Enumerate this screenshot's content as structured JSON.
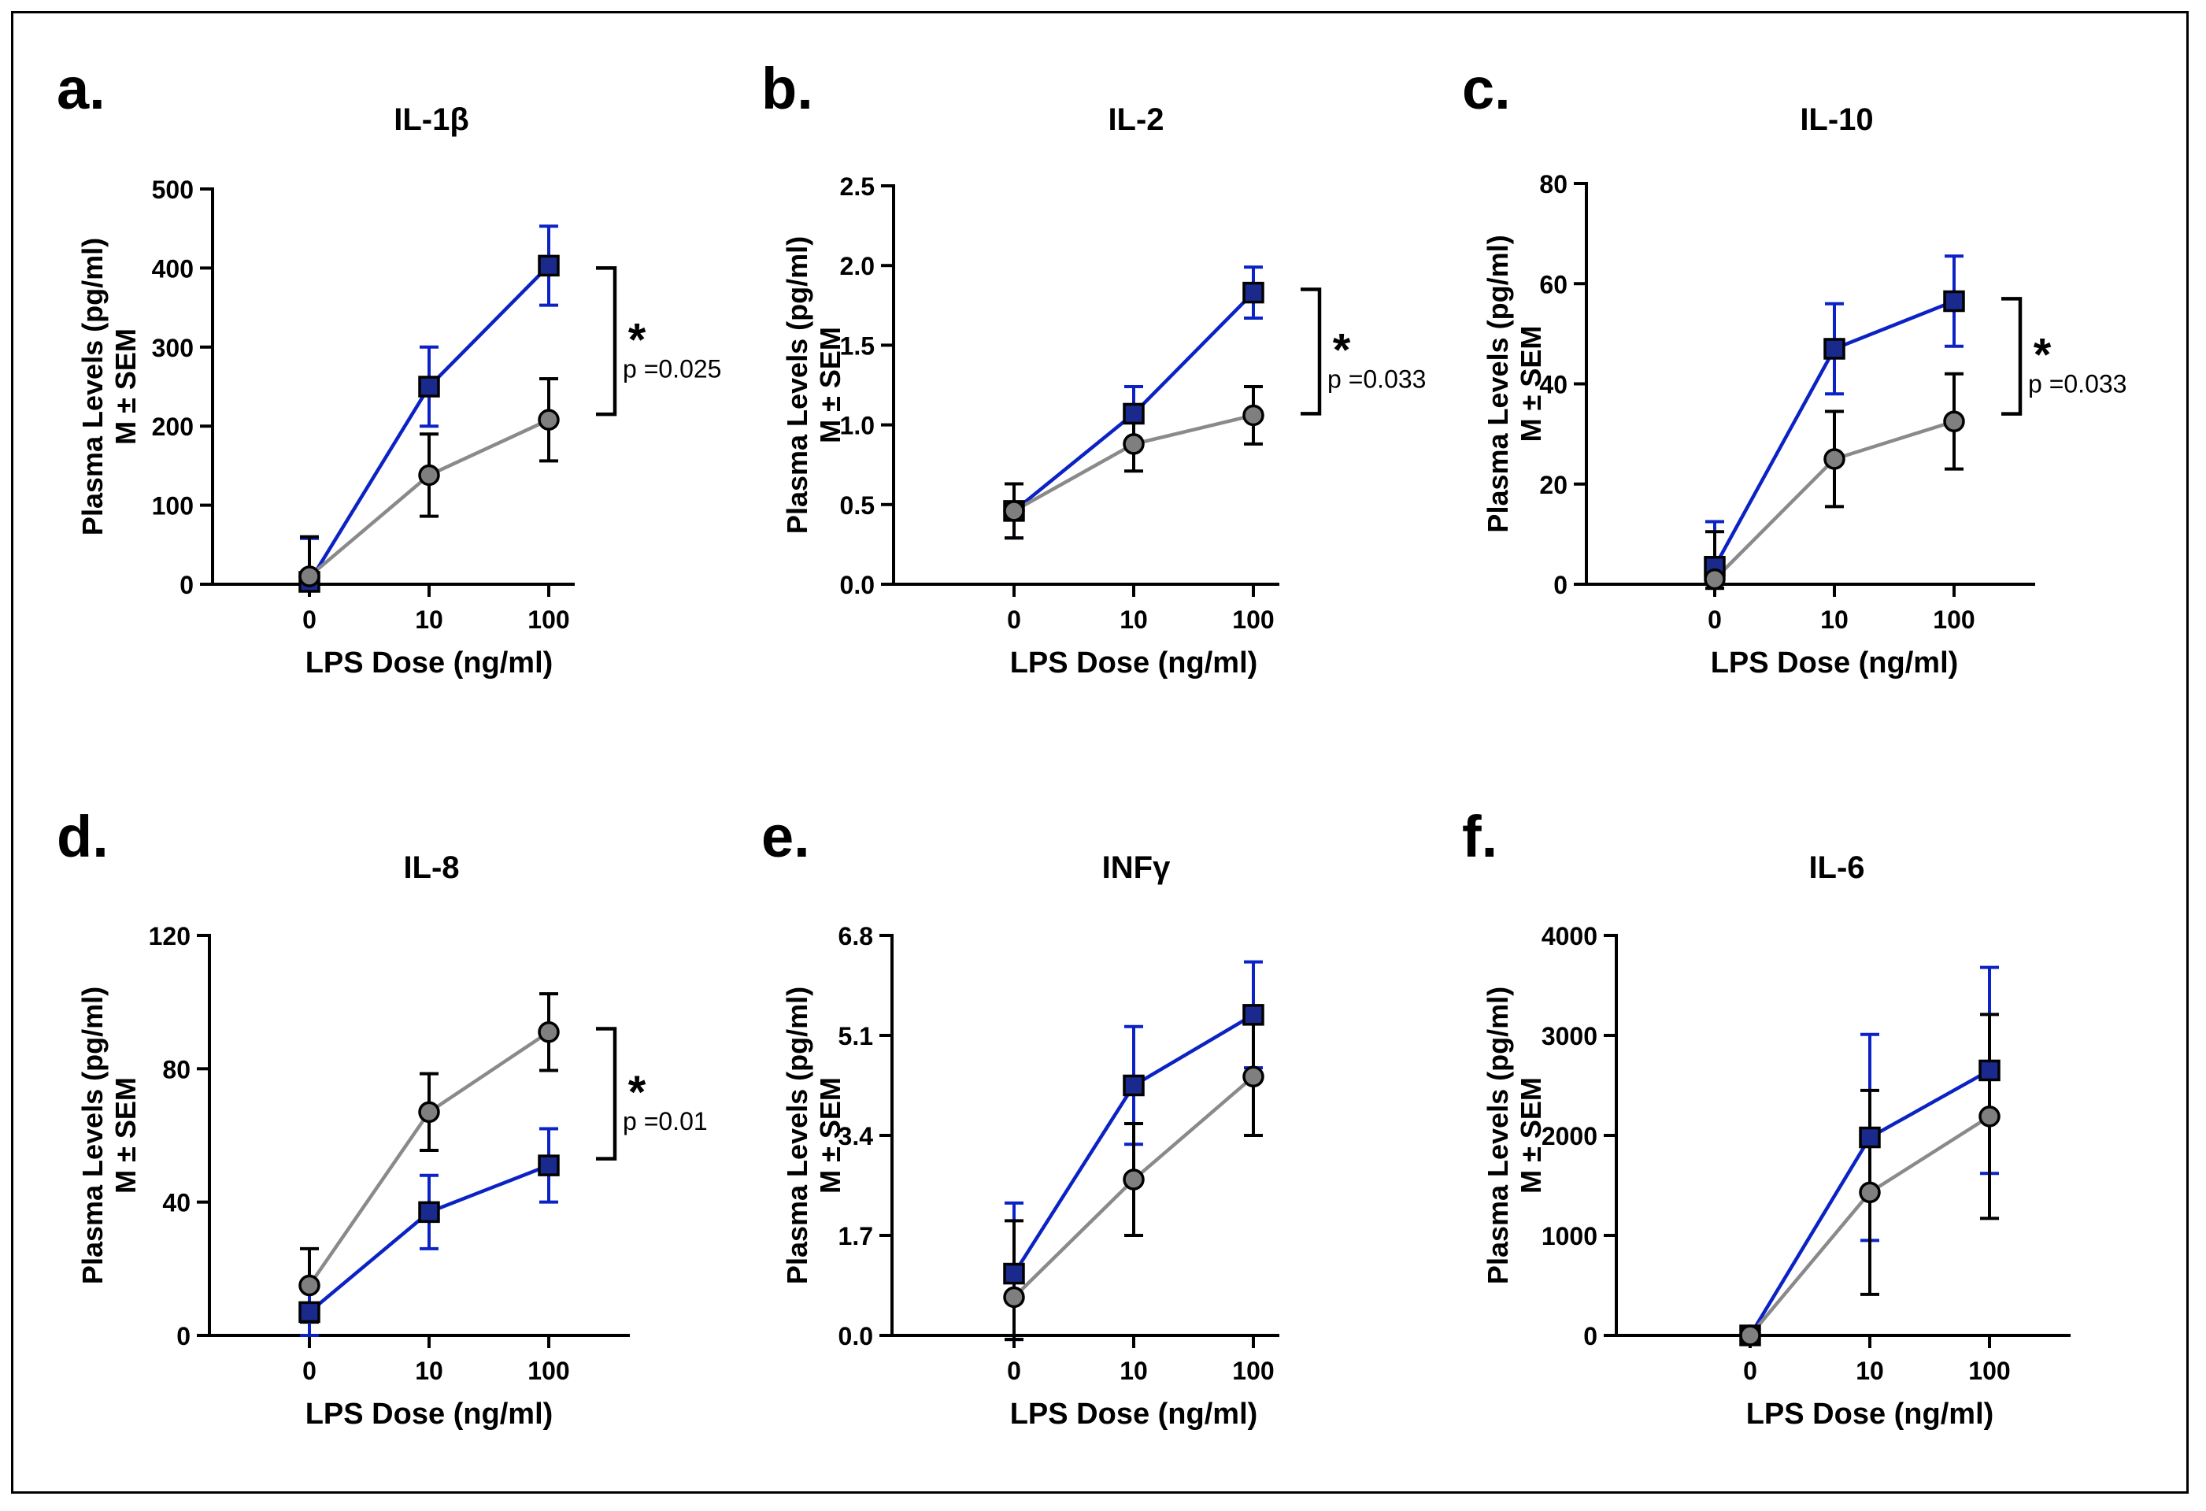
{
  "figure": {
    "ylabel_line1": "Plasma Levels (pg/ml)",
    "ylabel_line2": "M ± SEM",
    "xlabel": "LPS Dose (ng/ml)"
  },
  "colors": {
    "blue": "#0b22c4",
    "blueFill": "#1a2a8c",
    "gray": "#8a8a8a",
    "grayFill": "#7f7f7f",
    "black": "#000000"
  },
  "chart_data": [
    {
      "id": "a",
      "panel_label": "a.",
      "type": "line",
      "title": "IL-1β",
      "categories": [
        "0",
        "10",
        "100"
      ],
      "ylim": [
        0,
        500
      ],
      "yticks": [
        "0",
        "100",
        "200",
        "300",
        "400",
        "500"
      ],
      "series": [
        {
          "name": "blue",
          "marker": "square",
          "values": [
            3,
            250,
            403
          ],
          "errors": [
            55,
            50,
            50
          ]
        },
        {
          "name": "gray",
          "marker": "circle",
          "values": [
            10,
            138,
            208
          ],
          "errors": [
            50,
            52,
            52
          ]
        }
      ],
      "significance": {
        "star": "*",
        "p_text": "p =0.025",
        "range": [
          215,
          400
        ]
      }
    },
    {
      "id": "b",
      "panel_label": "b.",
      "type": "line",
      "title": "IL-2",
      "categories": [
        "0",
        "10",
        "100"
      ],
      "ylim": [
        0,
        2.5
      ],
      "yticks": [
        "0.0",
        "0.5",
        "1.0",
        "1.5",
        "2.0",
        "2.5"
      ],
      "series": [
        {
          "name": "blue",
          "marker": "square",
          "values": [
            0.46,
            1.07,
            1.83
          ],
          "errors": [
            0.17,
            0.17,
            0.16
          ]
        },
        {
          "name": "gray",
          "marker": "circle",
          "values": [
            0.46,
            0.88,
            1.06
          ],
          "errors": [
            0.17,
            0.17,
            0.18
          ]
        }
      ],
      "significance": {
        "star": "*",
        "p_text": "p =0.033",
        "range": [
          1.07,
          1.85
        ]
      }
    },
    {
      "id": "c",
      "panel_label": "c.",
      "type": "line",
      "title": "IL-10",
      "categories": [
        "0",
        "10",
        "100"
      ],
      "ylim": [
        0,
        80
      ],
      "yticks": [
        "0",
        "20",
        "40",
        "60",
        "80"
      ],
      "series": [
        {
          "name": "blue",
          "marker": "square",
          "values": [
            3.5,
            47,
            56.5
          ],
          "errors": [
            9,
            9,
            9
          ]
        },
        {
          "name": "gray",
          "marker": "circle",
          "values": [
            1,
            25,
            32.5
          ],
          "errors": [
            9.5,
            9.5,
            9.5
          ]
        }
      ],
      "significance": {
        "star": "*",
        "p_text": "p =0.033",
        "range": [
          34,
          57
        ]
      }
    },
    {
      "id": "d",
      "panel_label": "d.",
      "type": "line",
      "title": "IL-8",
      "categories": [
        "0",
        "10",
        "100"
      ],
      "ylim": [
        0,
        120
      ],
      "yticks": [
        "0",
        "40",
        "80",
        "120"
      ],
      "series": [
        {
          "name": "gray",
          "marker": "circle",
          "values": [
            15,
            67,
            91
          ],
          "errors": [
            11,
            11.5,
            11.5
          ]
        },
        {
          "name": "blue",
          "marker": "square",
          "values": [
            7,
            37,
            51
          ],
          "errors": [
            7,
            11,
            11
          ]
        }
      ],
      "significance": {
        "star": "*",
        "p_text": "p =0.01",
        "range": [
          53,
          92
        ]
      }
    },
    {
      "id": "e",
      "panel_label": "e.",
      "type": "line",
      "title": "INFγ",
      "categories": [
        "0",
        "10",
        "100"
      ],
      "ylim": [
        0,
        6.8
      ],
      "yticks": [
        "0.0",
        "1.7",
        "3.4",
        "5.1",
        "6.8"
      ],
      "series": [
        {
          "name": "blue",
          "marker": "square",
          "values": [
            1.05,
            4.25,
            5.45
          ],
          "errors": [
            1.2,
            1.0,
            0.9
          ]
        },
        {
          "name": "gray",
          "marker": "circle",
          "values": [
            0.65,
            2.65,
            4.4
          ],
          "errors": [
            1.3,
            0.95,
            1.0
          ]
        }
      ],
      "significance": null
    },
    {
      "id": "f",
      "panel_label": "f.",
      "type": "line",
      "title": "IL-6",
      "categories": [
        "0",
        "10",
        "100"
      ],
      "ylim": [
        0,
        4000
      ],
      "yticks": [
        "0",
        "1000",
        "2000",
        "3000",
        "4000"
      ],
      "series": [
        {
          "name": "blue",
          "marker": "square",
          "values": [
            0,
            1980,
            2650
          ],
          "errors": [
            0,
            1030,
            1030
          ]
        },
        {
          "name": "gray",
          "marker": "circle",
          "values": [
            0,
            1430,
            2190
          ],
          "errors": [
            0,
            1020,
            1020
          ]
        }
      ],
      "significance": null
    }
  ]
}
